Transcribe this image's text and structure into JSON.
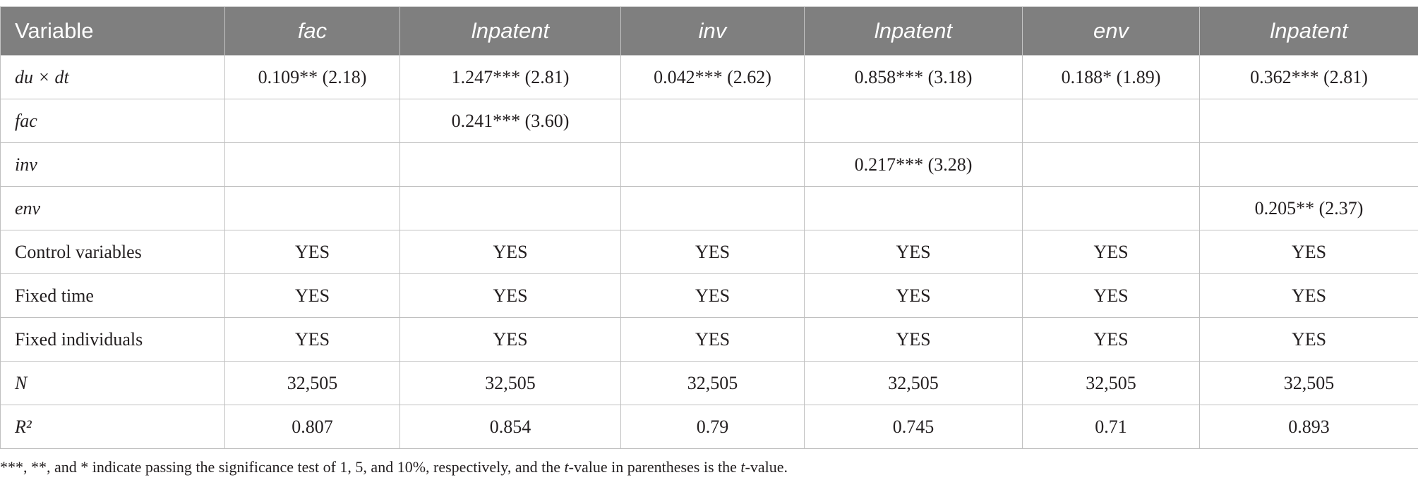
{
  "table": {
    "columns": [
      "Variable",
      "fac",
      "lnpatent",
      "inv",
      "lnpatent",
      "env",
      "lnpatent"
    ],
    "rows": [
      {
        "label": "du × dt",
        "cells": [
          "0.109** (2.18)",
          "1.247*** (2.81)",
          "0.042*** (2.62)",
          "0.858*** (3.18)",
          "0.188* (1.89)",
          "0.362*** (2.81)"
        ]
      },
      {
        "label": "fac",
        "cells": [
          "",
          "0.241*** (3.60)",
          "",
          "",
          "",
          ""
        ]
      },
      {
        "label": "inv",
        "cells": [
          "",
          "",
          "",
          "0.217*** (3.28)",
          "",
          ""
        ]
      },
      {
        "label": "env",
        "cells": [
          "",
          "",
          "",
          "",
          "",
          "0.205** (2.37)"
        ]
      },
      {
        "label": "Control variables",
        "cells": [
          "YES",
          "YES",
          "YES",
          "YES",
          "YES",
          "YES"
        ]
      },
      {
        "label": "Fixed time",
        "cells": [
          "YES",
          "YES",
          "YES",
          "YES",
          "YES",
          "YES"
        ]
      },
      {
        "label": "Fixed individuals",
        "cells": [
          "YES",
          "YES",
          "YES",
          "YES",
          "YES",
          "YES"
        ]
      },
      {
        "label": "N",
        "cells": [
          "32,505",
          "32,505",
          "32,505",
          "32,505",
          "32,505",
          "32,505"
        ]
      },
      {
        "label": "R²",
        "cells": [
          "0.807",
          "0.854",
          "0.79",
          "0.745",
          "0.71",
          "0.893"
        ]
      }
    ]
  },
  "footnote": {
    "parts": [
      "***, **, and * indicate passing the significance test of 1, 5, and 10%, respectively, and the ",
      "t",
      "-value in parentheses is the ",
      "t",
      "-value."
    ]
  },
  "colors": {
    "header_background": "#7f7f7f",
    "header_text": "#ffffff",
    "grid_lines": "#c0c0c0",
    "body_text": "#231f20"
  }
}
